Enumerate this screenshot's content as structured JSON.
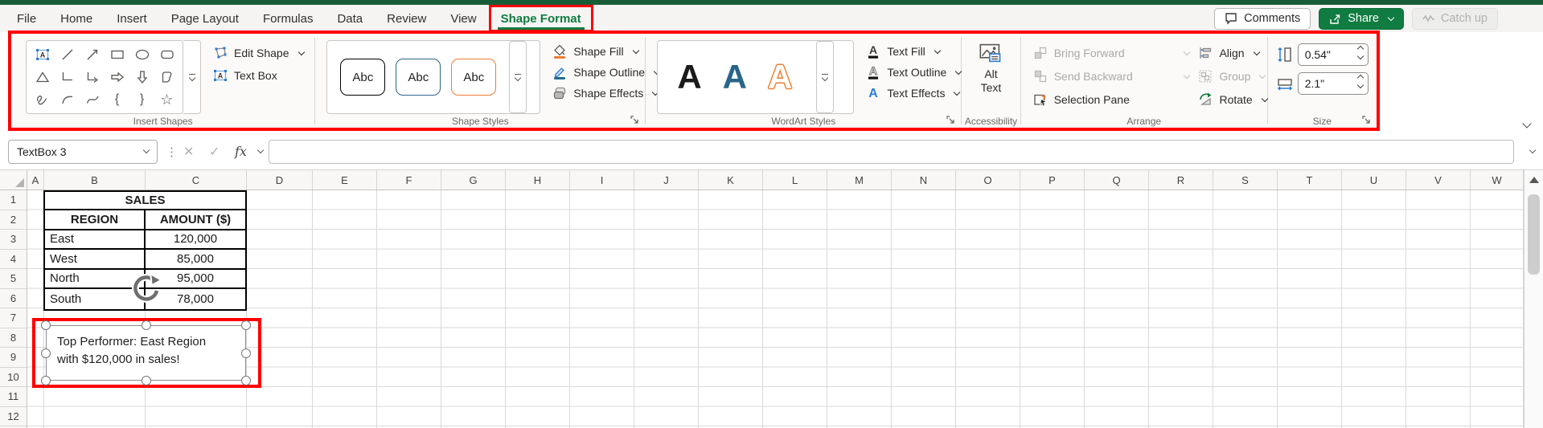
{
  "titlebar": {
    "tabs": [
      "File",
      "Home",
      "Insert",
      "Page Layout",
      "Formulas",
      "Data",
      "Review",
      "View",
      "Shape Format"
    ],
    "active_tab": "Shape Format",
    "comments_label": "Comments",
    "share_label": "Share",
    "catchup_label": "Catch up"
  },
  "ribbon": {
    "insert_shapes": {
      "label": "Insert Shapes",
      "shapes": [
        "text-box",
        "line",
        "line-arrow",
        "rectangle",
        "oval",
        "rounded-rectangle",
        "isosceles-triangle",
        "elbow-connector",
        "elbow-arrow-connector",
        "arrow-right",
        "arrow-down",
        "freeform",
        "scribble",
        "arc",
        "curve",
        "left-brace",
        "right-brace",
        "star"
      ],
      "buttons": [
        {
          "label": "Edit Shape",
          "icon": "edit-shape-icon",
          "chevron": true
        },
        {
          "label": "Text Box",
          "icon": "text-box-icon",
          "chevron": false
        }
      ]
    },
    "shape_styles": {
      "label": "Shape Styles",
      "previews": [
        {
          "label": "Abc",
          "border_color": "#000000"
        },
        {
          "label": "Abc",
          "border_color": "#29658A"
        },
        {
          "label": "Abc",
          "border_color": "#ED7D31"
        }
      ],
      "buttons": [
        {
          "label": "Shape Fill",
          "icon": "shape-fill-icon"
        },
        {
          "label": "Shape Outline",
          "icon": "shape-outline-icon"
        },
        {
          "label": "Shape Effects",
          "icon": "shape-effects-icon"
        }
      ]
    },
    "wordart_styles": {
      "label": "WordArt Styles",
      "previews": [
        {
          "letter": "A",
          "color": "#1a1a1a",
          "outline": false
        },
        {
          "letter": "A",
          "color": "#29658A",
          "outline": false
        },
        {
          "letter": "A",
          "color": "#ED7D31",
          "outline": true
        }
      ],
      "buttons": [
        {
          "label": "Text Fill",
          "icon": "text-fill-icon"
        },
        {
          "label": "Text Outline",
          "icon": "text-outline-icon"
        },
        {
          "label": "Text Effects",
          "icon": "text-effects-icon"
        }
      ]
    },
    "accessibility": {
      "label": "Accessibility",
      "alt_text_label": "Alt\nText"
    },
    "arrange": {
      "label": "Arrange",
      "items": [
        {
          "label": "Bring Forward",
          "icon": "bring-forward-icon",
          "disabled": true,
          "chevron": true
        },
        {
          "label": "Send Backward",
          "icon": "send-backward-icon",
          "disabled": true,
          "chevron": true
        },
        {
          "label": "Selection Pane",
          "icon": "selection-pane-icon",
          "disabled": false,
          "chevron": false
        },
        {
          "label": "Align",
          "icon": "align-icon",
          "disabled": false,
          "chevron": true
        },
        {
          "label": "Group",
          "icon": "group-icon",
          "disabled": true,
          "chevron": true
        },
        {
          "label": "Rotate",
          "icon": "rotate-icon",
          "disabled": false,
          "chevron": true
        }
      ]
    },
    "size": {
      "label": "Size",
      "height_value": "0.54\"",
      "width_value": "2.1\""
    }
  },
  "formula_bar": {
    "name_box_value": "TextBox 3",
    "fx_label": "fx",
    "cancel_glyph": "✕",
    "enter_glyph": "✓",
    "formula_value": ""
  },
  "grid": {
    "columns": [
      "A",
      "B",
      "C",
      "D",
      "E",
      "F",
      "G",
      "H",
      "I",
      "J",
      "K",
      "L",
      "M",
      "N",
      "O",
      "P",
      "Q",
      "R",
      "S",
      "T",
      "U",
      "V",
      "W"
    ],
    "rows": [
      "1",
      "2",
      "3",
      "4",
      "5",
      "6",
      "7",
      "8",
      "9",
      "10",
      "11",
      "12"
    ],
    "table": {
      "title": "SALES",
      "headers": [
        "REGION",
        "AMOUNT ($)"
      ],
      "rows": [
        [
          "East",
          "120,000"
        ],
        [
          "West",
          "85,000"
        ],
        [
          "North",
          "95,000"
        ],
        [
          "South",
          "78,000"
        ]
      ]
    },
    "textbox": {
      "line1": "Top Performer: East Region",
      "line2": "with $120,000 in sales!"
    }
  },
  "colors": {
    "annotation_red": "#FF0000",
    "excel_green": "#107C41",
    "titlebar_green": "#185C37",
    "accent_orange": "#ED7D31",
    "accent_blue": "#29658A",
    "effects_blue": "#2B7CD3",
    "disabled_gray": "#ABA9A7"
  }
}
